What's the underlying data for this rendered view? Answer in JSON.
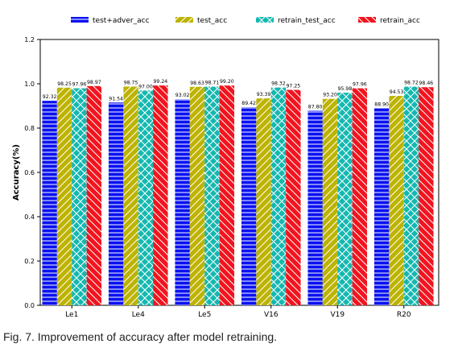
{
  "chart_data": {
    "type": "bar",
    "title": "",
    "xlabel": "",
    "ylabel": "Accuracy(%)",
    "ylim": [
      0.0,
      1.2
    ],
    "yticks": [
      "0.0",
      "0.2",
      "0.4",
      "0.6",
      "0.8",
      "1.0",
      "1.2"
    ],
    "categories": [
      "Le1",
      "Le4",
      "Le5",
      "V16",
      "V19",
      "R20"
    ],
    "legend_position": "top",
    "grid": false,
    "series": [
      {
        "name": "test+adver_acc",
        "color": "#0a12f0",
        "hatch": "horizontal-lines",
        "values": [
          0.9232,
          0.9154,
          0.9302,
          0.8942,
          0.878,
          0.889
        ],
        "labels": [
          "92.32",
          "91.54",
          "93.02",
          "89.42",
          "87.80",
          "88.90"
        ]
      },
      {
        "name": "test_acc",
        "color": "#bdb300",
        "hatch": "diagonal-lines",
        "values": [
          0.9825,
          0.9875,
          0.9863,
          0.9339,
          0.932,
          0.9453
        ],
        "labels": [
          "98.25",
          "98.75",
          "98.63",
          "93.39",
          "93.20",
          "94.53"
        ]
      },
      {
        "name": "retrain_test_acc",
        "color": "#14b8b0",
        "hatch": "crosshatch",
        "values": [
          0.9796,
          0.97,
          0.9871,
          0.9832,
          0.9598,
          0.9872
        ],
        "labels": [
          "97.96",
          "97.00",
          "98.71",
          "98.32",
          "95.98",
          "98.72"
        ]
      },
      {
        "name": "retrain_acc",
        "color": "#f2141e",
        "hatch": "back-diagonal-lines",
        "values": [
          0.9897,
          0.9924,
          0.992,
          0.9725,
          0.9796,
          0.9846
        ],
        "labels": [
          "98.97",
          "99.24",
          "99.20",
          "97.25",
          "97.96",
          "98.46"
        ]
      }
    ]
  },
  "caption": "Fig. 7. Improvement of accuracy after model retraining."
}
